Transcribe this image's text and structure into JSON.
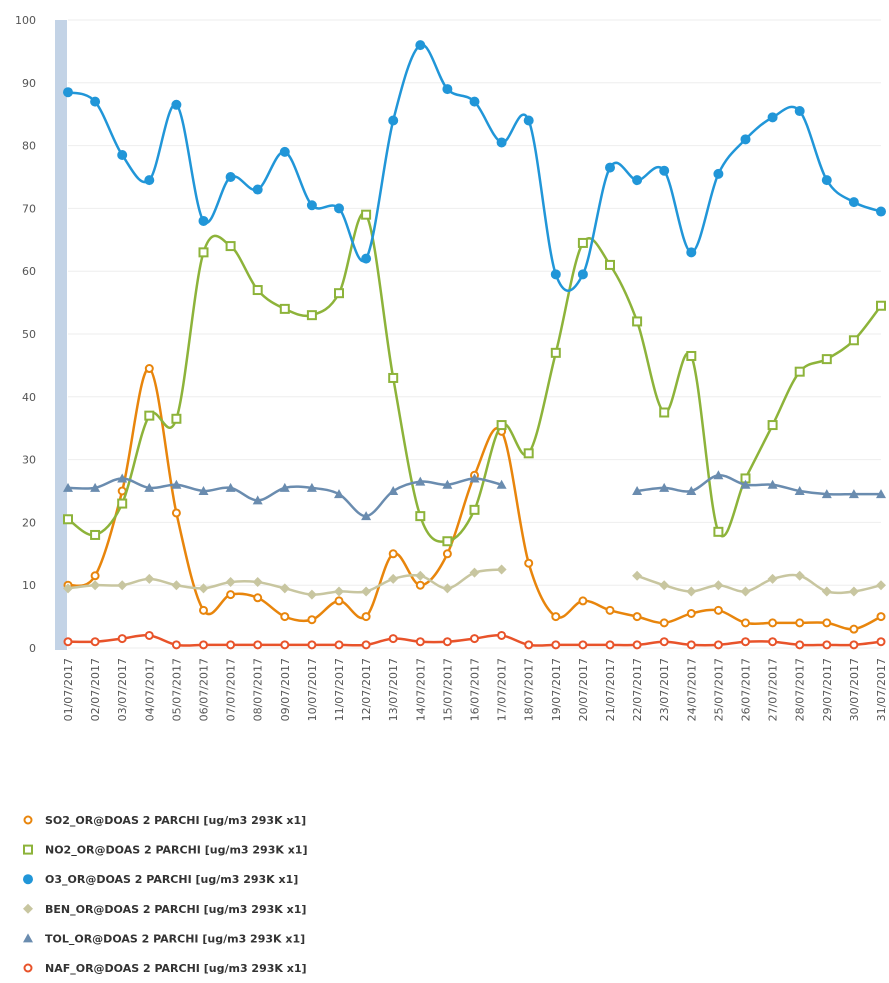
{
  "chart_data": {
    "type": "line",
    "grid": true,
    "categories": [
      "01/07/2017",
      "02/07/2017",
      "03/07/2017",
      "04/07/2017",
      "05/07/2017",
      "06/07/2017",
      "07/07/2017",
      "08/07/2017",
      "09/07/2017",
      "10/07/2017",
      "11/07/2017",
      "12/07/2017",
      "13/07/2017",
      "14/07/2017",
      "15/07/2017",
      "16/07/2017",
      "17/07/2017",
      "18/07/2017",
      "19/07/2017",
      "20/07/2017",
      "21/07/2017",
      "22/07/2017",
      "23/07/2017",
      "24/07/2017",
      "25/07/2017",
      "26/07/2017",
      "27/07/2017",
      "28/07/2017",
      "29/07/2017",
      "30/07/2017",
      "31/07/2017"
    ],
    "ylim": [
      0,
      100
    ],
    "yticks": [
      0,
      10,
      20,
      30,
      40,
      50,
      60,
      70,
      80,
      90,
      100
    ],
    "series": [
      {
        "name": "SO2_OR@DOAS 2 PARCHI [ug/m3 293K x1]",
        "color": "#e8850c",
        "marker": "circle",
        "values": [
          10,
          11.5,
          25,
          44.5,
          21.5,
          6,
          8.5,
          8,
          5,
          4.5,
          7.5,
          5,
          15,
          10,
          15,
          27.5,
          34.5,
          13.5,
          5,
          7.5,
          6,
          5,
          4,
          5.5,
          6,
          4,
          4,
          4,
          4,
          3,
          5
        ]
      },
      {
        "name": "NO2_OR@DOAS 2 PARCHI [ug/m3 293K x1]",
        "color": "#8db33a",
        "marker": "square",
        "values": [
          20.5,
          18,
          23,
          37,
          36.5,
          63,
          64,
          57,
          54,
          53,
          56.5,
          69,
          43,
          21,
          17,
          22,
          35.5,
          31,
          47,
          64.5,
          61,
          52,
          37.5,
          46.5,
          18.5,
          27,
          35.5,
          44,
          46,
          49,
          54.5
        ]
      },
      {
        "name": "O3_OR@DOAS 2 PARCHI [ug/m3 293K x1]",
        "color": "#2196d8",
        "marker": "dot",
        "values": [
          88.5,
          87,
          78.5,
          74.5,
          86.5,
          68,
          75,
          73,
          79,
          70.5,
          70,
          62,
          84,
          96,
          89,
          87,
          80.5,
          84,
          59.5,
          59.5,
          76.5,
          74.5,
          76,
          63,
          75.5,
          81,
          84.5,
          85.5,
          74.5,
          71,
          69.5
        ]
      },
      {
        "name": "BEN_OR@DOAS 2 PARCHI [ug/m3 293K x1]",
        "color": "#c8c6a0",
        "marker": "diamond",
        "values": [
          9.5,
          10,
          10,
          11,
          10,
          9.5,
          10.5,
          10.5,
          9.5,
          8.5,
          9,
          9,
          11,
          11.5,
          9.5,
          12,
          12.5,
          null,
          null,
          null,
          null,
          11.5,
          10,
          9,
          10,
          9,
          11,
          11.5,
          9,
          9,
          10
        ]
      },
      {
        "name": "TOL_OR@DOAS 2 PARCHI [ug/m3 293K x1]",
        "color": "#6a8caf",
        "marker": "triangle",
        "values": [
          25.5,
          25.5,
          27,
          25.5,
          26,
          25,
          25.5,
          23.5,
          25.5,
          25.5,
          24.5,
          21,
          25,
          26.5,
          26,
          27,
          26,
          null,
          null,
          null,
          null,
          25,
          25.5,
          25,
          27.5,
          26,
          26,
          25,
          24.5,
          24.5,
          24.5
        ]
      },
      {
        "name": "NAF_OR@DOAS 2 PARCHI [ug/m3 293K x1]",
        "color": "#e8532a",
        "marker": "circle",
        "values": [
          1,
          1,
          1.5,
          2,
          0.5,
          0.5,
          0.5,
          0.5,
          0.5,
          0.5,
          0.5,
          0.5,
          1.5,
          1,
          1,
          1.5,
          2,
          0.5,
          0.5,
          0.5,
          0.5,
          0.5,
          1,
          0.5,
          0.5,
          1,
          1,
          0.5,
          0.5,
          0.5,
          1
        ]
      }
    ]
  }
}
